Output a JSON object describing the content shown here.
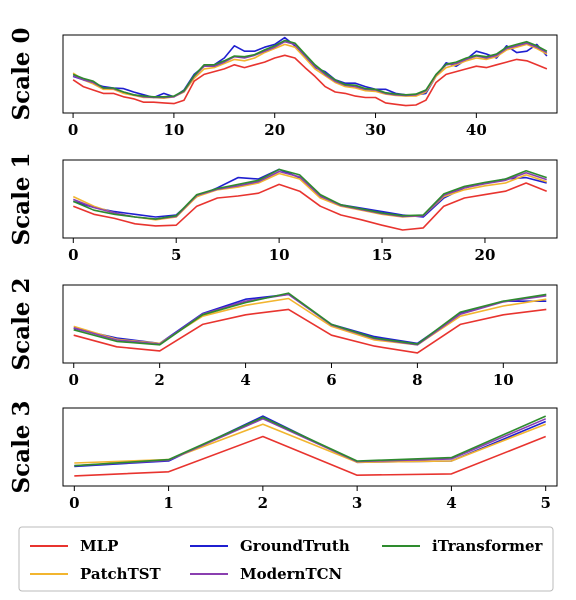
{
  "colors": {
    "MLP": "#e8342f",
    "GroundTruth": "#1f1fd0",
    "iTransformer": "#2e8b2e",
    "PatchTST": "#f2b52f",
    "ModernTCN": "#8a3fb0"
  },
  "legend": {
    "placement": "bottom",
    "columns": 3,
    "entries": [
      "MLP",
      "GroundTruth",
      "iTransformer",
      "PatchTST",
      "ModernTCN"
    ]
  },
  "chart_data": [
    {
      "type": "line",
      "ylabel": "Scale 0",
      "xlim": [
        -1,
        48
      ],
      "ylim": [
        0,
        1
      ],
      "xticks": [
        0,
        10,
        20,
        30,
        40
      ],
      "y_tick_labels_shown": false,
      "x": [
        0,
        1,
        2,
        3,
        4,
        5,
        6,
        7,
        8,
        9,
        10,
        11,
        12,
        13,
        14,
        15,
        16,
        17,
        18,
        19,
        20,
        21,
        22,
        23,
        24,
        25,
        26,
        27,
        28,
        29,
        30,
        31,
        32,
        33,
        34,
        35,
        36,
        37,
        38,
        39,
        40,
        41,
        42,
        43,
        44,
        45,
        46,
        47
      ],
      "series": [
        {
          "name": "MLP",
          "values": [
            0.4,
            0.3,
            0.25,
            0.2,
            0.2,
            0.15,
            0.12,
            0.07,
            0.07,
            0.06,
            0.05,
            0.1,
            0.38,
            0.48,
            0.52,
            0.56,
            0.62,
            0.58,
            0.62,
            0.66,
            0.72,
            0.76,
            0.72,
            0.58,
            0.45,
            0.3,
            0.22,
            0.2,
            0.16,
            0.14,
            0.14,
            0.06,
            0.04,
            0.02,
            0.03,
            0.1,
            0.36,
            0.48,
            0.52,
            0.56,
            0.6,
            0.58,
            0.62,
            0.66,
            0.7,
            0.68,
            0.62,
            0.56
          ]
        },
        {
          "name": "GroundTruth",
          "values": [
            0.45,
            0.4,
            0.35,
            0.3,
            0.28,
            0.27,
            0.22,
            0.18,
            0.14,
            0.2,
            0.15,
            0.25,
            0.48,
            0.6,
            0.62,
            0.72,
            0.9,
            0.82,
            0.82,
            0.88,
            0.92,
            1.02,
            0.9,
            0.75,
            0.58,
            0.52,
            0.4,
            0.35,
            0.35,
            0.3,
            0.26,
            0.26,
            0.2,
            0.18,
            0.18,
            0.2,
            0.45,
            0.65,
            0.6,
            0.7,
            0.82,
            0.78,
            0.72,
            0.9,
            0.8,
            0.82,
            0.92,
            0.75
          ]
        },
        {
          "name": "iTransformer",
          "values": [
            0.48,
            0.42,
            0.38,
            0.28,
            0.28,
            0.22,
            0.18,
            0.16,
            0.15,
            0.15,
            0.16,
            0.24,
            0.46,
            0.62,
            0.62,
            0.68,
            0.75,
            0.74,
            0.77,
            0.84,
            0.9,
            0.98,
            0.94,
            0.78,
            0.62,
            0.5,
            0.4,
            0.33,
            0.32,
            0.27,
            0.26,
            0.21,
            0.19,
            0.18,
            0.19,
            0.25,
            0.48,
            0.63,
            0.66,
            0.72,
            0.76,
            0.74,
            0.78,
            0.88,
            0.92,
            0.96,
            0.9,
            0.82
          ]
        },
        {
          "name": "PatchTST",
          "values": [
            0.5,
            0.4,
            0.34,
            0.26,
            0.26,
            0.2,
            0.17,
            0.14,
            0.14,
            0.13,
            0.15,
            0.22,
            0.42,
            0.56,
            0.58,
            0.64,
            0.7,
            0.68,
            0.72,
            0.8,
            0.86,
            0.92,
            0.88,
            0.72,
            0.56,
            0.46,
            0.36,
            0.3,
            0.28,
            0.24,
            0.23,
            0.19,
            0.17,
            0.16,
            0.16,
            0.22,
            0.45,
            0.58,
            0.62,
            0.68,
            0.72,
            0.7,
            0.74,
            0.84,
            0.88,
            0.92,
            0.86,
            0.78
          ]
        },
        {
          "name": "ModernTCN",
          "values": [
            0.46,
            0.4,
            0.36,
            0.28,
            0.27,
            0.22,
            0.18,
            0.15,
            0.14,
            0.14,
            0.15,
            0.23,
            0.45,
            0.6,
            0.6,
            0.66,
            0.74,
            0.72,
            0.76,
            0.82,
            0.88,
            0.96,
            0.92,
            0.76,
            0.6,
            0.48,
            0.38,
            0.32,
            0.3,
            0.26,
            0.25,
            0.2,
            0.18,
            0.17,
            0.18,
            0.24,
            0.47,
            0.62,
            0.64,
            0.7,
            0.75,
            0.72,
            0.76,
            0.86,
            0.9,
            0.94,
            0.88,
            0.8
          ]
        }
      ]
    },
    {
      "type": "line",
      "ylabel": "Scale 1",
      "xlim": [
        -0.5,
        23.5
      ],
      "ylim": [
        0,
        1
      ],
      "xticks": [
        0,
        5,
        10,
        15,
        20
      ],
      "y_tick_labels_shown": false,
      "x": [
        0,
        1,
        2,
        3,
        4,
        5,
        6,
        7,
        8,
        9,
        10,
        11,
        12,
        13,
        14,
        15,
        16,
        17,
        18,
        19,
        20,
        21,
        22,
        23
      ],
      "series": [
        {
          "name": "MLP",
          "values": [
            0.38,
            0.26,
            0.2,
            0.12,
            0.09,
            0.1,
            0.38,
            0.5,
            0.53,
            0.57,
            0.7,
            0.6,
            0.38,
            0.25,
            0.18,
            0.1,
            0.03,
            0.06,
            0.38,
            0.5,
            0.55,
            0.6,
            0.72,
            0.6
          ]
        },
        {
          "name": "GroundTruth",
          "values": [
            0.45,
            0.36,
            0.3,
            0.26,
            0.22,
            0.25,
            0.52,
            0.65,
            0.8,
            0.78,
            0.92,
            0.8,
            0.52,
            0.4,
            0.35,
            0.3,
            0.25,
            0.22,
            0.5,
            0.65,
            0.72,
            0.78,
            0.8,
            0.72
          ]
        },
        {
          "name": "iTransformer",
          "values": [
            0.45,
            0.32,
            0.26,
            0.22,
            0.19,
            0.24,
            0.55,
            0.64,
            0.7,
            0.76,
            0.92,
            0.84,
            0.55,
            0.4,
            0.34,
            0.28,
            0.24,
            0.25,
            0.56,
            0.67,
            0.73,
            0.78,
            0.9,
            0.8
          ]
        },
        {
          "name": "PatchTST",
          "values": [
            0.52,
            0.38,
            0.28,
            0.22,
            0.18,
            0.22,
            0.52,
            0.62,
            0.66,
            0.72,
            0.86,
            0.78,
            0.5,
            0.38,
            0.32,
            0.26,
            0.22,
            0.24,
            0.52,
            0.62,
            0.68,
            0.72,
            0.84,
            0.74
          ]
        },
        {
          "name": "ModernTCN",
          "values": [
            0.48,
            0.36,
            0.28,
            0.22,
            0.19,
            0.23,
            0.54,
            0.63,
            0.68,
            0.74,
            0.89,
            0.81,
            0.53,
            0.39,
            0.33,
            0.27,
            0.23,
            0.24,
            0.54,
            0.65,
            0.71,
            0.76,
            0.87,
            0.77
          ]
        }
      ]
    },
    {
      "type": "line",
      "ylabel": "Scale 2",
      "xlim": [
        -0.25,
        11.25
      ],
      "ylim": [
        0,
        1
      ],
      "xticks": [
        0,
        2,
        4,
        6,
        8,
        10
      ],
      "y_tick_labels_shown": false,
      "x": [
        0,
        1,
        2,
        3,
        4,
        5,
        6,
        7,
        8,
        9,
        10,
        11
      ],
      "series": [
        {
          "name": "MLP",
          "values": [
            0.32,
            0.15,
            0.09,
            0.48,
            0.62,
            0.7,
            0.32,
            0.16,
            0.06,
            0.48,
            0.62,
            0.7
          ]
        },
        {
          "name": "GroundTruth",
          "values": [
            0.42,
            0.28,
            0.2,
            0.64,
            0.85,
            0.92,
            0.48,
            0.3,
            0.2,
            0.64,
            0.82,
            0.82
          ]
        },
        {
          "name": "iTransformer",
          "values": [
            0.4,
            0.23,
            0.18,
            0.62,
            0.8,
            0.94,
            0.48,
            0.28,
            0.19,
            0.66,
            0.82,
            0.92
          ]
        },
        {
          "name": "PatchTST",
          "values": [
            0.45,
            0.26,
            0.2,
            0.6,
            0.76,
            0.86,
            0.45,
            0.25,
            0.18,
            0.6,
            0.75,
            0.85
          ]
        },
        {
          "name": "ModernTCN",
          "values": [
            0.43,
            0.25,
            0.19,
            0.63,
            0.82,
            0.92,
            0.47,
            0.27,
            0.18,
            0.63,
            0.81,
            0.9
          ]
        }
      ]
    },
    {
      "type": "line",
      "ylabel": "Scale 3",
      "xlim": [
        -0.12,
        5.12
      ],
      "ylim": [
        0,
        1
      ],
      "xticks": [
        0,
        1,
        2,
        3,
        4,
        5
      ],
      "y_tick_labels_shown": false,
      "x": [
        0,
        1,
        2,
        3,
        4,
        5
      ],
      "series": [
        {
          "name": "MLP",
          "values": [
            0.06,
            0.12,
            0.64,
            0.07,
            0.09,
            0.64
          ]
        },
        {
          "name": "GroundTruth",
          "values": [
            0.2,
            0.28,
            0.94,
            0.26,
            0.28,
            0.86
          ]
        },
        {
          "name": "iTransformer",
          "values": [
            0.21,
            0.3,
            0.92,
            0.28,
            0.33,
            0.94
          ]
        },
        {
          "name": "PatchTST",
          "values": [
            0.25,
            0.3,
            0.82,
            0.26,
            0.28,
            0.82
          ]
        },
        {
          "name": "ModernTCN",
          "values": [
            0.21,
            0.29,
            0.9,
            0.27,
            0.31,
            0.9
          ]
        }
      ]
    }
  ]
}
